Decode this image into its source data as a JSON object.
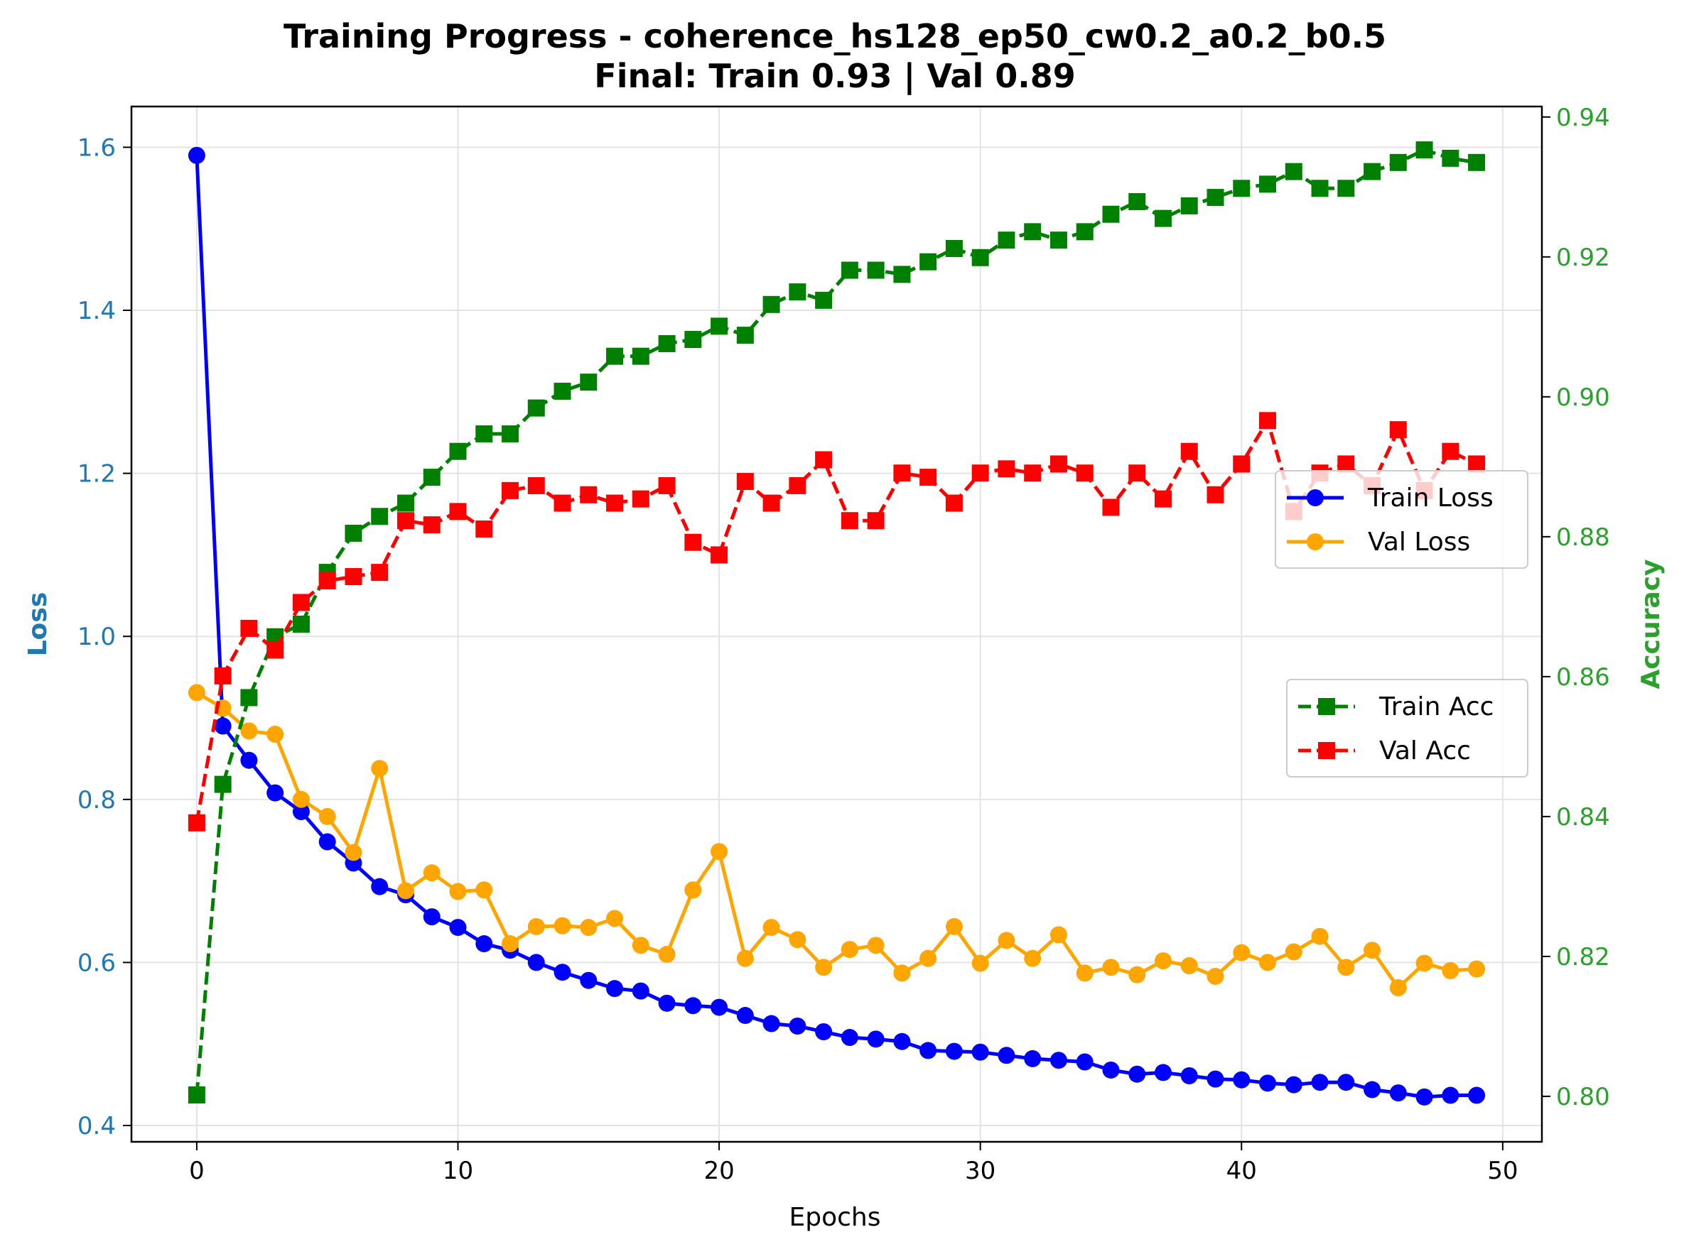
{
  "chart_data": {
    "type": "line",
    "title": "Training Progress - coherence_hs128_ep50_cw0.2_a0.2_b0.5",
    "subtitle": "Final: Train 0.93 | Val 0.89",
    "xlabel": "Epochs",
    "ylabel_left": "Loss",
    "ylabel_right": "Accuracy",
    "xlim": [
      -2.5,
      51.5
    ],
    "ylim_left": [
      0.38,
      1.65
    ],
    "ylim_right": [
      0.7935,
      0.9415
    ],
    "x_ticks": [
      0,
      10,
      20,
      30,
      40,
      50
    ],
    "y_left_ticks": [
      0.4,
      0.6,
      0.8,
      1.0,
      1.2,
      1.4,
      1.6
    ],
    "y_right_ticks": [
      0.8,
      0.82,
      0.84,
      0.86,
      0.88,
      0.9,
      0.92,
      0.94
    ],
    "grid": true,
    "colors": {
      "left_axis": "#1f77b4",
      "right_axis": "#2ca02c"
    },
    "x": [
      0,
      1,
      2,
      3,
      4,
      5,
      6,
      7,
      8,
      9,
      10,
      11,
      12,
      13,
      14,
      15,
      16,
      17,
      18,
      19,
      20,
      21,
      22,
      23,
      24,
      25,
      26,
      27,
      28,
      29,
      30,
      31,
      32,
      33,
      34,
      35,
      36,
      37,
      38,
      39,
      40,
      41,
      42,
      43,
      44,
      45,
      46,
      47,
      48,
      49
    ],
    "series": [
      {
        "name": "Train Loss",
        "axis": "left",
        "color": "#0000ff",
        "linestyle": "solid",
        "marker": "circle",
        "values": [
          1.59,
          0.89,
          0.848,
          0.808,
          0.785,
          0.748,
          0.722,
          0.693,
          0.683,
          0.656,
          0.643,
          0.623,
          0.615,
          0.6,
          0.588,
          0.578,
          0.568,
          0.565,
          0.55,
          0.547,
          0.545,
          0.535,
          0.525,
          0.522,
          0.515,
          0.508,
          0.506,
          0.503,
          0.492,
          0.491,
          0.49,
          0.486,
          0.482,
          0.48,
          0.478,
          0.468,
          0.463,
          0.465,
          0.461,
          0.457,
          0.456,
          0.452,
          0.45,
          0.453,
          0.453,
          0.444,
          0.44,
          0.435,
          0.437,
          0.437
        ]
      },
      {
        "name": "Val Loss",
        "axis": "left",
        "color": "#ffa500",
        "linestyle": "solid",
        "marker": "circle",
        "values": [
          0.931,
          0.912,
          0.884,
          0.88,
          0.8,
          0.779,
          0.735,
          0.838,
          0.688,
          0.71,
          0.687,
          0.689,
          0.623,
          0.644,
          0.645,
          0.643,
          0.654,
          0.621,
          0.61,
          0.689,
          0.736,
          0.605,
          0.643,
          0.628,
          0.594,
          0.616,
          0.621,
          0.587,
          0.605,
          0.644,
          0.599,
          0.627,
          0.605,
          0.634,
          0.587,
          0.594,
          0.585,
          0.602,
          0.596,
          0.583,
          0.612,
          0.6,
          0.613,
          0.632,
          0.594,
          0.615,
          0.569,
          0.599,
          0.59,
          0.592
        ]
      },
      {
        "name": "Train Acc",
        "axis": "right",
        "color": "#008000",
        "linestyle": "dashed",
        "marker": "square",
        "values": [
          0.8002,
          0.8446,
          0.857,
          0.8657,
          0.8675,
          0.8749,
          0.8805,
          0.8829,
          0.8848,
          0.8885,
          0.8922,
          0.8947,
          0.8947,
          0.8984,
          0.9008,
          0.9021,
          0.9058,
          0.9058,
          0.9076,
          0.9082,
          0.9101,
          0.9088,
          0.9132,
          0.915,
          0.9138,
          0.9181,
          0.9181,
          0.9175,
          0.9193,
          0.9212,
          0.9199,
          0.9224,
          0.9236,
          0.9224,
          0.9236,
          0.9261,
          0.9279,
          0.9255,
          0.9273,
          0.9285,
          0.9298,
          0.9304,
          0.9322,
          0.9298,
          0.9298,
          0.9322,
          0.9335,
          0.9353,
          0.9341,
          0.9335
        ]
      },
      {
        "name": "Val Acc",
        "axis": "right",
        "color": "#ff0000",
        "linestyle": "dashed",
        "marker": "square",
        "values": [
          0.8391,
          0.8601,
          0.8669,
          0.8638,
          0.8706,
          0.8737,
          0.8743,
          0.8749,
          0.8823,
          0.8817,
          0.8836,
          0.8811,
          0.8866,
          0.8873,
          0.8848,
          0.886,
          0.8848,
          0.8854,
          0.8873,
          0.8792,
          0.8774,
          0.8879,
          0.8848,
          0.8873,
          0.891,
          0.8823,
          0.8823,
          0.8891,
          0.8885,
          0.8848,
          0.8891,
          0.8897,
          0.8891,
          0.8904,
          0.8891,
          0.8842,
          0.8891,
          0.8854,
          0.8922,
          0.886,
          0.8904,
          0.8966,
          0.8836,
          0.8891,
          0.8904,
          0.8873,
          0.8953,
          0.8866,
          0.8922,
          0.8904
        ]
      }
    ],
    "legends": [
      {
        "position": "center-right, upper",
        "entries": [
          "Train Loss",
          "Val Loss"
        ]
      },
      {
        "position": "center-right, lower",
        "entries": [
          "Train Acc",
          "Val Acc"
        ]
      }
    ]
  }
}
